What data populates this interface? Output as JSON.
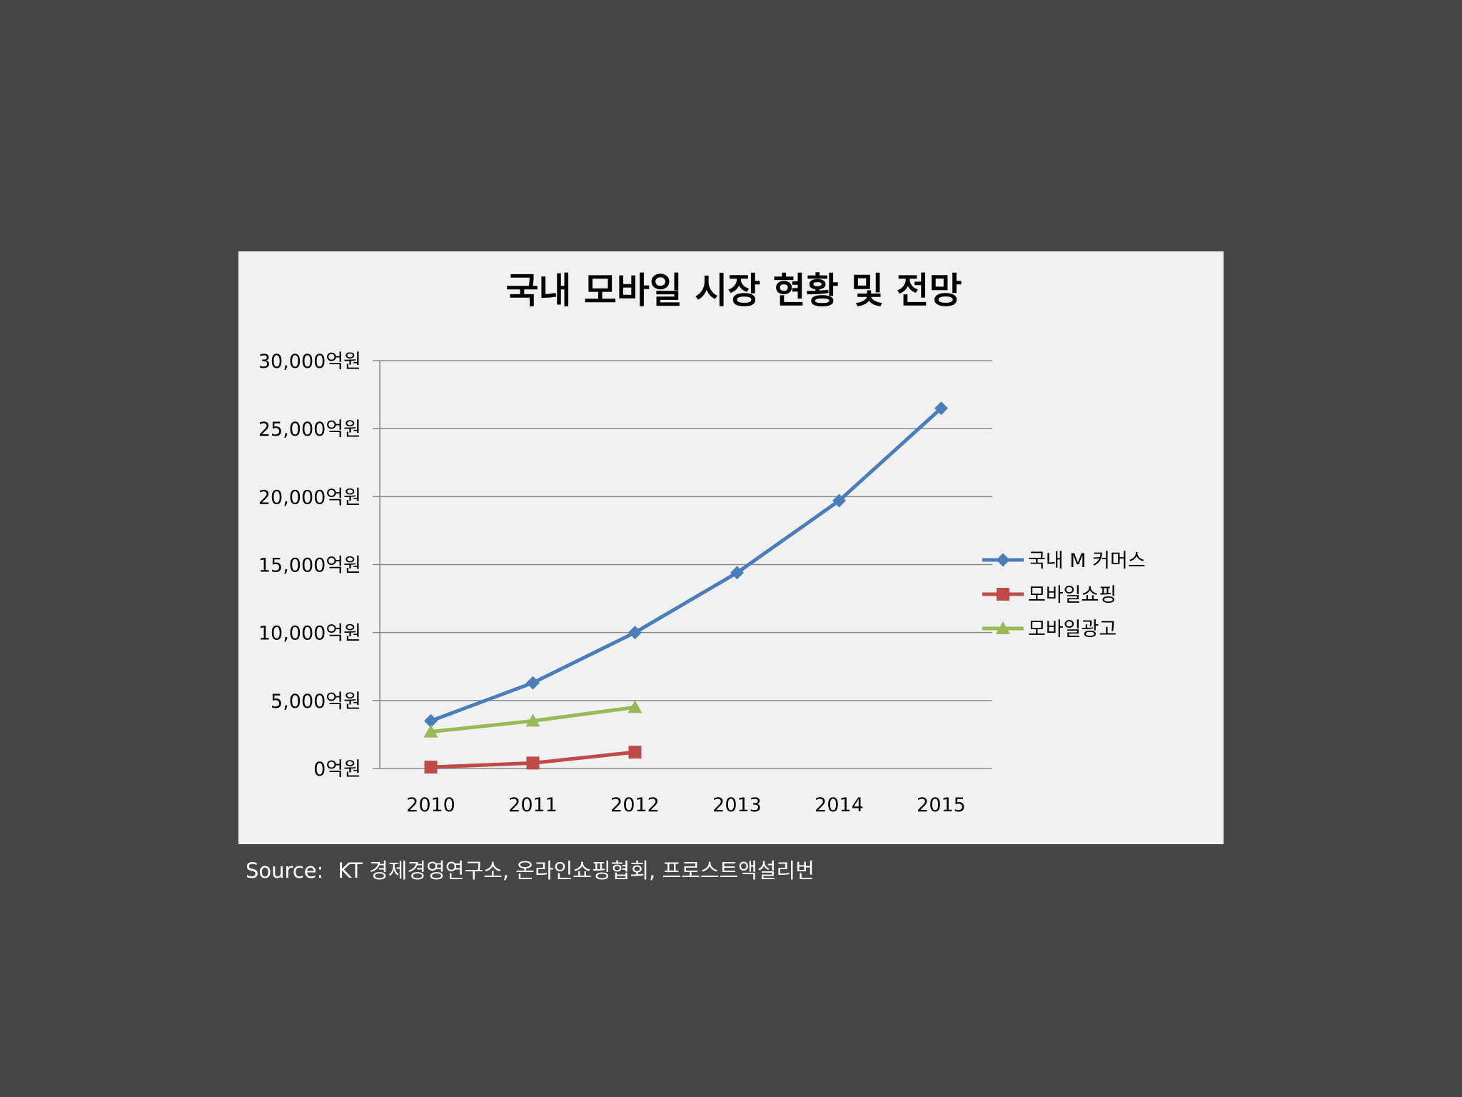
{
  "chart_data": {
    "type": "line",
    "title": "국내 모바일 시장 현황 및 전망",
    "categories": [
      "2010",
      "2011",
      "2012",
      "2013",
      "2014",
      "2015"
    ],
    "y_tick_labels": [
      "0억원",
      "5,000억원",
      "10,000억원",
      "15,000억원",
      "20,000억원",
      "25,000억원",
      "30,000억원"
    ],
    "ylim": [
      0,
      30000
    ],
    "y_unit": "억원",
    "grid": true,
    "legend_position": "right",
    "series": [
      {
        "name": "국내 M 커머스",
        "color": "#4a7ebb",
        "marker": "diamond",
        "values": [
          3500,
          6300,
          10000,
          14400,
          19700,
          26500
        ]
      },
      {
        "name": "모바일쇼핑",
        "color": "#be4b48",
        "marker": "square",
        "values": [
          100,
          400,
          1200,
          null,
          null,
          null
        ]
      },
      {
        "name": "모바일광고",
        "color": "#98b954",
        "marker": "triangle",
        "values": [
          2700,
          3500,
          4500,
          null,
          null,
          null
        ]
      }
    ]
  },
  "source": {
    "label": "Source:",
    "text": "KT 경제경영연구소, 온라인쇼핑협회, 프로스트액설리번"
  }
}
